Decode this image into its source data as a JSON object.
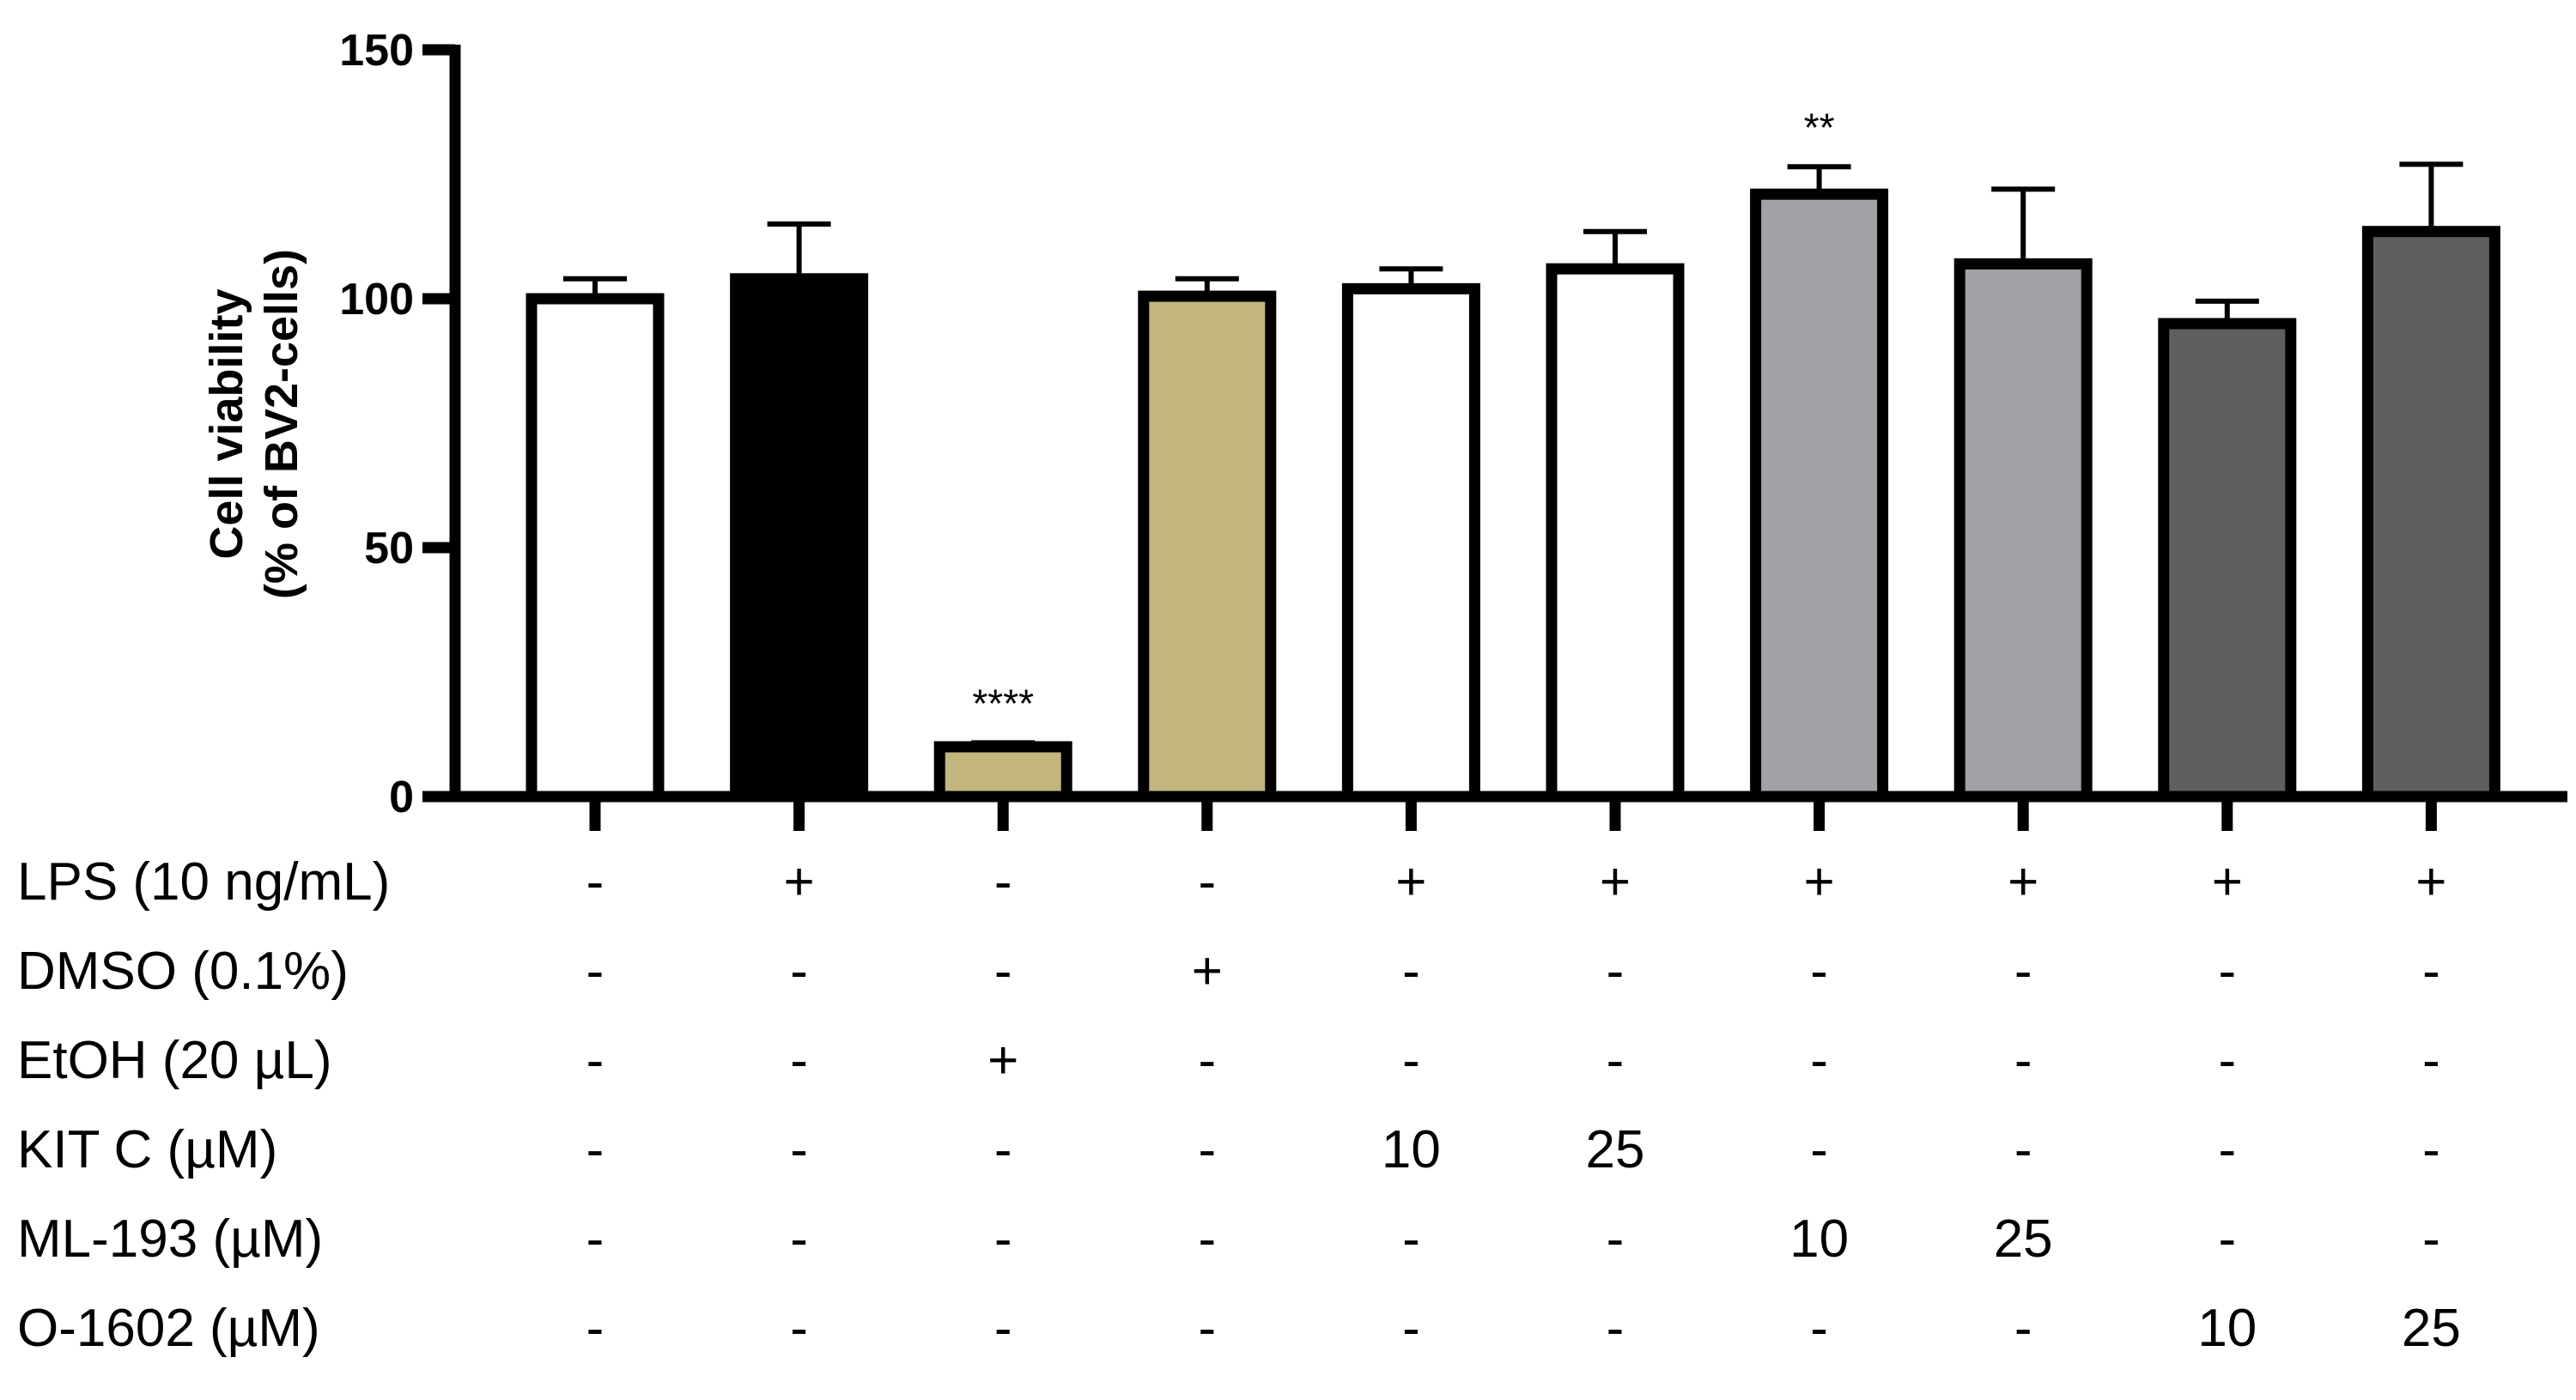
{
  "chart_data": {
    "type": "bar",
    "ylabel_lines": [
      "Cell viability",
      "(% of BV2-cells)"
    ],
    "ylim": [
      0,
      150
    ],
    "yticks": [
      0,
      50,
      100,
      150
    ],
    "bars": [
      {
        "value": 100,
        "error": 4,
        "fill": "#ffffff",
        "sig": ""
      },
      {
        "value": 104,
        "error": 11,
        "fill": "#000000",
        "sig": ""
      },
      {
        "value": 10,
        "error": 0.8,
        "fill": "#c2b67e",
        "sig": "****"
      },
      {
        "value": 100.5,
        "error": 3.5,
        "fill": "#c2b67e",
        "sig": ""
      },
      {
        "value": 102,
        "error": 4,
        "fill": "#ffffff",
        "sig": ""
      },
      {
        "value": 106,
        "error": 7.5,
        "fill": "#ffffff",
        "sig": ""
      },
      {
        "value": 121,
        "error": 5.5,
        "fill": "#a2a2a6",
        "sig": "**"
      },
      {
        "value": 107,
        "error": 15,
        "fill": "#a2a2a6",
        "sig": ""
      },
      {
        "value": 95,
        "error": 4.5,
        "fill": "#5f5f5f",
        "sig": ""
      },
      {
        "value": 113.5,
        "error": 13.5,
        "fill": "#5f5f5f",
        "sig": ""
      }
    ],
    "table": {
      "rows": [
        {
          "label": "LPS (10 ng/mL)",
          "cells": [
            "-",
            "+",
            "-",
            "-",
            "+",
            "+",
            "+",
            "+",
            "+",
            "+"
          ]
        },
        {
          "label": "DMSO (0.1%)",
          "cells": [
            "-",
            "-",
            "-",
            "+",
            "-",
            "-",
            "-",
            "-",
            "-",
            "-"
          ]
        },
        {
          "label": "EtOH (20 µL)",
          "cells": [
            "-",
            "-",
            "+",
            "-",
            "-",
            "-",
            "-",
            "-",
            "-",
            "-"
          ]
        },
        {
          "label": "KIT C (µM)",
          "cells": [
            "-",
            "-",
            "-",
            "-",
            "10",
            "25",
            "-",
            "-",
            "-",
            "-"
          ]
        },
        {
          "label": "ML-193 (µM)",
          "cells": [
            "-",
            "-",
            "-",
            "-",
            "-",
            "-",
            "10",
            "25",
            "-",
            "-"
          ]
        },
        {
          "label": "O-1602 (µM)",
          "cells": [
            "-",
            "-",
            "-",
            "-",
            "-",
            "-",
            "-",
            "-",
            "10",
            "25"
          ]
        }
      ]
    },
    "grid": false,
    "legend": "none"
  }
}
